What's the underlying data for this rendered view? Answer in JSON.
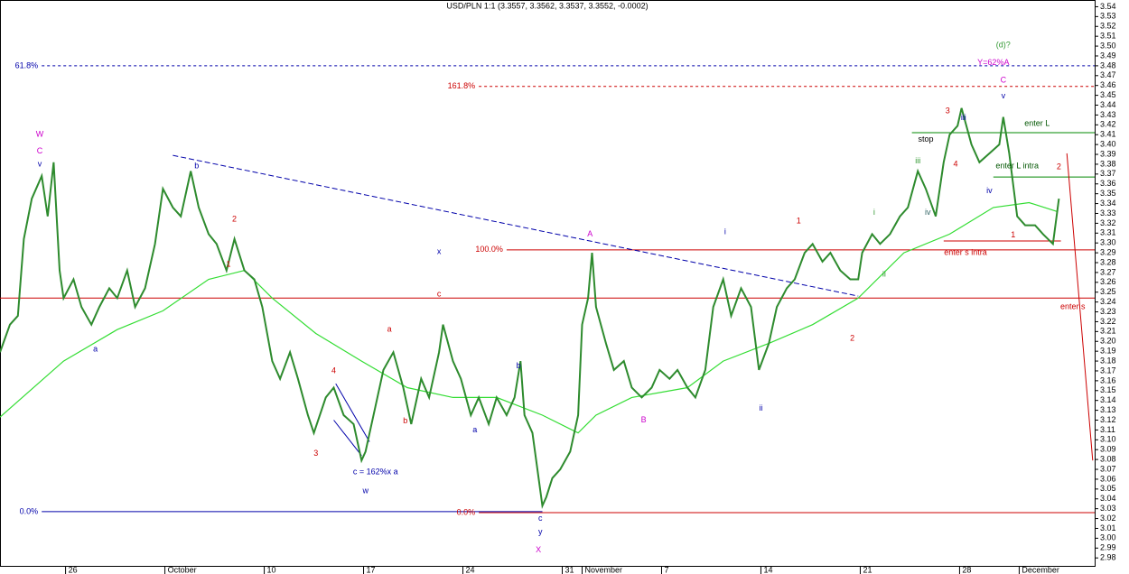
{
  "chart_data": {
    "type": "line",
    "title": "USD/PLN 1:1 (3.3557, 3.3562, 3.3537, 3.3552, -0.0002)",
    "xlim": [
      -0.3,
      54.8
    ],
    "ylim": [
      2.971,
      3.545
    ],
    "xticks": [
      {
        "value": 3,
        "label": "26"
      },
      {
        "value": 8,
        "label": "October"
      },
      {
        "value": 13,
        "label": "10"
      },
      {
        "value": 18,
        "label": "17"
      },
      {
        "value": 23,
        "label": "24"
      },
      {
        "value": 28,
        "label": "31"
      },
      {
        "value": 29,
        "label": "November"
      },
      {
        "value": 33,
        "label": "7"
      },
      {
        "value": 38,
        "label": "14"
      },
      {
        "value": 43,
        "label": "21"
      },
      {
        "value": 48,
        "label": "28"
      },
      {
        "value": 51,
        "label": "December"
      }
    ],
    "yticks": [
      2.98,
      2.99,
      {
        "value": 3,
        "label": "3.00"
      },
      3.01,
      3.02,
      3.03,
      3.04,
      3.05,
      3.06,
      3.07,
      3.08,
      3.09,
      {
        "value": 3.1,
        "label": "3.10"
      },
      3.11,
      3.12,
      3.13,
      3.14,
      3.15,
      3.16,
      3.17,
      3.18,
      3.19,
      {
        "value": 3.2,
        "label": "3.20"
      },
      3.21,
      3.22,
      3.23,
      3.24,
      3.25,
      3.26,
      3.27,
      3.28,
      3.29,
      {
        "value": 3.3,
        "label": "3.30"
      },
      3.31,
      3.32,
      3.33,
      3.34,
      3.35,
      3.36,
      3.37,
      3.38,
      3.39,
      {
        "value": 3.4,
        "label": "3.40"
      },
      3.41,
      3.42,
      3.43,
      3.44,
      3.45,
      3.46,
      3.47,
      3.48,
      3.49,
      {
        "value": 3.5,
        "label": "3.50"
      },
      3.51,
      3.52,
      3.53,
      3.54
    ],
    "series": [
      {
        "color": "#2e8b2e",
        "x": [
          -0.3,
          0.2,
          0.6,
          0.9,
          1.3,
          1.8,
          2.1,
          2.4,
          2.7,
          2.9,
          3.4,
          3.8,
          4.3,
          4.7,
          5.2,
          5.6,
          6.1,
          6.5,
          7.0,
          7.5,
          7.9,
          8.4,
          8.8,
          9.3,
          9.7,
          10.2,
          10.6,
          11.1,
          11.5,
          12.0,
          12.5,
          12.9,
          13.4,
          13.8,
          14.3,
          14.7,
          15.2,
          15.5,
          16.1,
          16.5,
          17.0,
          17.5,
          17.9,
          18.1,
          18.6,
          19.0,
          19.5,
          20.0,
          20.4,
          20.9,
          21.3,
          21.8,
          22.0,
          22.5,
          22.9,
          23.4,
          23.8,
          24.3,
          24.7,
          25.2,
          25.6,
          25.9,
          26.1,
          26.5,
          27.0,
          27.2,
          27.5,
          27.9,
          28.4,
          28.8,
          29.0,
          29.3,
          29.5,
          29.7,
          30.2,
          30.6,
          31.1,
          31.5,
          32.0,
          32.5,
          32.9,
          33.4,
          33.8,
          34.3,
          34.7,
          35.2,
          35.6,
          36.1,
          36.5,
          37.0,
          37.5,
          37.9,
          38.4,
          38.8,
          39.3,
          39.7,
          40.2,
          40.6,
          41.1,
          41.5,
          42.0,
          42.5,
          42.9,
          43.1,
          43.6,
          44.0,
          44.5,
          45.0,
          45.4,
          45.9,
          46.3,
          46.8,
          47.2,
          47.5,
          47.9,
          48.1,
          48.6,
          49.0,
          49.5,
          50.0,
          50.2,
          50.5,
          50.9,
          51.3,
          51.8,
          52.2,
          52.7,
          53.0
        ],
        "values": [
          3.189,
          3.217,
          3.226,
          3.304,
          3.345,
          3.368,
          3.327,
          3.382,
          3.272,
          3.244,
          3.263,
          3.235,
          3.217,
          3.235,
          3.254,
          3.244,
          3.272,
          3.235,
          3.254,
          3.299,
          3.355,
          3.336,
          3.327,
          3.373,
          3.336,
          3.309,
          3.299,
          3.272,
          3.304,
          3.272,
          3.263,
          3.235,
          3.18,
          3.162,
          3.189,
          3.162,
          3.125,
          3.107,
          3.143,
          3.153,
          3.125,
          3.116,
          3.079,
          3.088,
          3.134,
          3.171,
          3.189,
          3.153,
          3.116,
          3.162,
          3.143,
          3.189,
          3.217,
          3.18,
          3.162,
          3.125,
          3.143,
          3.116,
          3.143,
          3.125,
          3.143,
          3.18,
          3.125,
          3.107,
          3.033,
          3.042,
          3.061,
          3.07,
          3.088,
          3.125,
          3.217,
          3.244,
          3.29,
          3.235,
          3.198,
          3.171,
          3.18,
          3.153,
          3.143,
          3.153,
          3.171,
          3.162,
          3.171,
          3.153,
          3.143,
          3.171,
          3.235,
          3.263,
          3.226,
          3.254,
          3.235,
          3.171,
          3.198,
          3.235,
          3.254,
          3.263,
          3.29,
          3.299,
          3.281,
          3.29,
          3.272,
          3.263,
          3.263,
          3.29,
          3.309,
          3.299,
          3.309,
          3.327,
          3.336,
          3.373,
          3.355,
          3.327,
          3.382,
          3.41,
          3.419,
          3.437,
          3.4,
          3.382,
          3.391,
          3.4,
          3.428,
          3.391,
          3.327,
          3.318,
          3.318,
          3.309,
          3.299,
          3.345
        ]
      },
      {
        "color": "#33dd33",
        "x": [
          -0.3,
          2.9,
          5.6,
          7.9,
          10.2,
          12.0,
          13.4,
          15.6,
          17.9,
          20.2,
          22.5,
          24.7,
          27.0,
          28.8,
          29.7,
          31.5,
          34.3,
          36.1,
          38.4,
          40.6,
          42.9,
          45.2,
          47.5,
          49.7,
          51.5,
          52.9
        ],
        "values": [
          3.123,
          3.18,
          3.212,
          3.231,
          3.263,
          3.272,
          3.244,
          3.208,
          3.18,
          3.153,
          3.143,
          3.143,
          3.125,
          3.107,
          3.125,
          3.143,
          3.153,
          3.18,
          3.198,
          3.217,
          3.244,
          3.29,
          3.309,
          3.336,
          3.341,
          3.332
        ]
      }
    ],
    "levels": [
      {
        "label": "61.8%",
        "y": 3.48,
        "x": [
          1.8,
          54.8
        ],
        "color": "#0000aa",
        "dashed": true
      },
      {
        "label": "161.8%",
        "y": 3.459,
        "x": [
          23.8,
          54.8
        ],
        "color": "#cc0000",
        "dashed": true
      },
      {
        "label": "100.0%",
        "y": 3.293,
        "x": [
          25.2,
          54.8
        ],
        "color": "#cc0000",
        "dashed": false
      },
      {
        "y": 3.244,
        "x": [
          -0.3,
          54.8
        ],
        "color": "#cc0000",
        "dashed": false
      },
      {
        "label": "0.0%",
        "y": 3.027,
        "x": [
          1.8,
          27.0
        ],
        "color": "#0000aa",
        "dashed": false
      },
      {
        "label": "0.0%",
        "y": 3.026,
        "x": [
          23.8,
          54.8
        ],
        "color": "#cc0000",
        "dashed": false
      },
      {
        "y": 3.412,
        "x": [
          45.6,
          54.8
        ],
        "color": "#008800",
        "dashed": false
      },
      {
        "y": 3.367,
        "x": [
          49.7,
          54.8
        ],
        "color": "#008800",
        "dashed": false
      },
      {
        "y": 3.302,
        "x": [
          47.2,
          53.1
        ],
        "color": "#cc0000",
        "dashed": false
      }
    ],
    "trendlines": [
      {
        "x": [
          8.4,
          42.9
        ],
        "y": [
          3.389,
          3.246
        ],
        "color": "#0000aa",
        "dashed": true
      },
      {
        "x": [
          53.4,
          54.7
        ],
        "y": [
          3.391,
          3.079
        ],
        "color": "#cc0000",
        "dashed": false
      },
      {
        "x": [
          16.6,
          18.3
        ],
        "y": [
          3.157,
          3.098
        ],
        "color": "#0000aa",
        "dashed": false
      },
      {
        "x": [
          16.5,
          17.9
        ],
        "y": [
          3.12,
          3.084
        ],
        "color": "#0000aa",
        "dashed": false
      }
    ],
    "annotations": [
      {
        "text": "W",
        "x": 1.7,
        "y": 3.41,
        "color": "#cc00cc"
      },
      {
        "text": "C",
        "x": 1.7,
        "y": 3.393,
        "color": "#cc00cc"
      },
      {
        "text": "v",
        "x": 1.7,
        "y": 3.38,
        "color": "#0000aa"
      },
      {
        "text": "a",
        "x": 4.5,
        "y": 3.192,
        "color": "#0000aa"
      },
      {
        "text": "b",
        "x": 9.6,
        "y": 3.378,
        "color": "#0000aa"
      },
      {
        "text": "2",
        "x": 11.5,
        "y": 3.324,
        "color": "#cc0000"
      },
      {
        "text": "1",
        "x": 11.2,
        "y": 3.278,
        "color": "#cc0000"
      },
      {
        "text": "4",
        "x": 16.5,
        "y": 3.17,
        "color": "#cc0000"
      },
      {
        "text": "3",
        "x": 15.6,
        "y": 3.086,
        "color": "#cc0000"
      },
      {
        "text": "c = 162%x a",
        "x": 18.6,
        "y": 3.067,
        "color": "#0000aa"
      },
      {
        "text": "w",
        "x": 18.1,
        "y": 3.048,
        "color": "#0000aa"
      },
      {
        "text": "a",
        "x": 19.3,
        "y": 3.212,
        "color": "#cc0000"
      },
      {
        "text": "b",
        "x": 20.1,
        "y": 3.119,
        "color": "#cc0000"
      },
      {
        "text": "x",
        "x": 21.8,
        "y": 3.291,
        "color": "#0000aa"
      },
      {
        "text": "c",
        "x": 21.8,
        "y": 3.248,
        "color": "#cc0000"
      },
      {
        "text": "a",
        "x": 23.6,
        "y": 3.11,
        "color": "#0000aa"
      },
      {
        "text": "b",
        "x": 25.8,
        "y": 3.175,
        "color": "#0000aa"
      },
      {
        "text": "c",
        "x": 26.9,
        "y": 3.02,
        "color": "#0000aa"
      },
      {
        "text": "y",
        "x": 26.9,
        "y": 3.006,
        "color": "#0000aa"
      },
      {
        "text": "X",
        "x": 26.8,
        "y": 2.988,
        "color": "#cc00cc"
      },
      {
        "text": "A",
        "x": 29.4,
        "y": 3.309,
        "color": "#cc00cc"
      },
      {
        "text": "B",
        "x": 32.1,
        "y": 3.12,
        "color": "#cc00cc"
      },
      {
        "text": "i",
        "x": 36.2,
        "y": 3.311,
        "color": "#0000aa"
      },
      {
        "text": "ii",
        "x": 38.0,
        "y": 3.132,
        "color": "#0000aa"
      },
      {
        "text": "1",
        "x": 39.9,
        "y": 3.322,
        "color": "#cc0000"
      },
      {
        "text": "2",
        "x": 42.6,
        "y": 3.203,
        "color": "#cc0000"
      },
      {
        "text": "i",
        "x": 43.7,
        "y": 3.331,
        "color": "#339933"
      },
      {
        "text": "ii",
        "x": 44.2,
        "y": 3.268,
        "color": "#339933"
      },
      {
        "text": "iii",
        "x": 45.9,
        "y": 3.383,
        "color": "#339933"
      },
      {
        "text": "iv",
        "x": 46.4,
        "y": 3.331,
        "color": "#336666"
      },
      {
        "text": "3",
        "x": 47.4,
        "y": 3.434,
        "color": "#cc0000"
      },
      {
        "text": "4",
        "x": 47.8,
        "y": 3.38,
        "color": "#cc0000"
      },
      {
        "text": "iii",
        "x": 48.2,
        "y": 3.427,
        "color": "#0000aa"
      },
      {
        "text": "iv",
        "x": 49.5,
        "y": 3.353,
        "color": "#0000aa"
      },
      {
        "text": "(d)?",
        "x": 50.2,
        "y": 3.501,
        "color": "#339933"
      },
      {
        "text": "Y=62%A",
        "x": 49.7,
        "y": 3.483,
        "color": "#cc00cc"
      },
      {
        "text": "C",
        "x": 50.2,
        "y": 3.465,
        "color": "#cc00cc"
      },
      {
        "text": "v",
        "x": 50.2,
        "y": 3.449,
        "color": "#0000aa"
      },
      {
        "text": "1",
        "x": 50.7,
        "y": 3.308,
        "color": "#cc0000"
      },
      {
        "text": "2",
        "x": 53.0,
        "y": 3.377,
        "color": "#cc0000"
      },
      {
        "text": "stop",
        "x": 46.3,
        "y": 3.405,
        "color": "#000000"
      },
      {
        "text": "enter L",
        "x": 51.9,
        "y": 3.421,
        "color": "#005500"
      },
      {
        "text": "enter L intra",
        "x": 50.9,
        "y": 3.378,
        "color": "#005500"
      },
      {
        "text": "enter s intra",
        "x": 48.3,
        "y": 3.29,
        "color": "#cc0000"
      },
      {
        "text": "enter s",
        "x": 53.7,
        "y": 3.235,
        "color": "#cc0000"
      }
    ]
  }
}
